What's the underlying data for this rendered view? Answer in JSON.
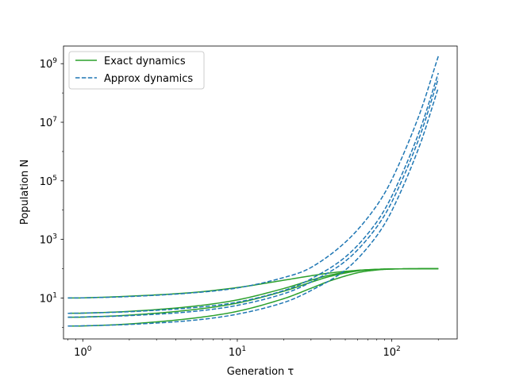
{
  "chart_data": {
    "type": "line",
    "xlabel": "Generation τ",
    "ylabel": "Population N",
    "xscale": "log",
    "yscale": "log",
    "xlim": [
      0.75,
      265
    ],
    "ylim": [
      0.4,
      4000000000.0
    ],
    "x_tick_labels": [
      {
        "value": 1,
        "base": "10",
        "exp": "0"
      },
      {
        "value": 10,
        "base": "10",
        "exp": "1"
      },
      {
        "value": 100,
        "base": "10",
        "exp": "2"
      }
    ],
    "y_tick_labels": [
      {
        "value": 10,
        "base": "10",
        "exp": "1"
      },
      {
        "value": 1000,
        "base": "10",
        "exp": "3"
      },
      {
        "value": 100000,
        "base": "10",
        "exp": "5"
      },
      {
        "value": 10000000,
        "base": "10",
        "exp": "7"
      },
      {
        "value": 1000000000,
        "base": "10",
        "exp": "9"
      }
    ],
    "grid": false,
    "legend_position": "top-left",
    "series": [
      {
        "name": "Exact dynamics",
        "style": "solid",
        "color": "#2ca02c",
        "groups": [
          {
            "x": [
              0.8,
              1,
              2,
              5,
              10,
              20,
              30,
              40,
              60,
              80,
              100,
              150,
              200
            ],
            "y": [
              10,
              10.1,
              11.5,
              15.2,
              22.7,
              40.4,
              57.3,
              71.6,
              88.1,
              95.0,
              98.0,
              99.7,
              100
            ]
          },
          {
            "x": [
              0.8,
              1,
              2,
              5,
              10,
              20,
              30,
              40,
              60,
              80,
              100,
              150,
              200
            ],
            "y": [
              3,
              3.04,
              3.5,
              5.1,
              8.6,
              21.1,
              40.5,
              61.0,
              86.0,
              95.0,
              98.0,
              99.7,
              100
            ]
          },
          {
            "x": [
              0.8,
              1,
              2,
              5,
              10,
              20,
              30,
              40,
              60,
              80,
              100,
              150,
              200
            ],
            "y": [
              2.2,
              2.23,
              2.6,
              3.9,
              6.7,
              17.1,
              34.5,
              55.0,
              83.8,
              94.5,
              98.0,
              99.7,
              100
            ]
          },
          {
            "x": [
              0.8,
              1,
              2,
              5,
              10,
              20,
              30,
              40,
              60,
              80,
              100,
              150,
              200
            ],
            "y": [
              1.1,
              1.11,
              1.3,
              2.0,
              3.5,
              9.5,
              21.5,
              38.8,
              72.6,
              90.2,
              96.9,
              99.6,
              100
            ]
          }
        ]
      },
      {
        "name": "Approx dynamics",
        "style": "dashed",
        "color": "#1f77b4",
        "groups": [
          {
            "x": [
              0.8,
              1,
              2,
              5,
              10,
              20,
              30,
              50,
              75,
              100,
              150,
              200
            ],
            "y": [
              10,
              10.1,
              11.2,
              14.8,
              22,
              50,
              110,
              800,
              9000,
              110000,
              17000000,
              1800000000
            ]
          },
          {
            "x": [
              0.8,
              1,
              2,
              5,
              10,
              20,
              30,
              50,
              75,
              100,
              150,
              200
            ],
            "y": [
              3,
              3.05,
              3.4,
              4.6,
              7.2,
              18,
              45,
              250,
              2500,
              30000,
              4500000,
              480000000
            ]
          },
          {
            "x": [
              0.8,
              1,
              2,
              5,
              10,
              20,
              30,
              50,
              75,
              100,
              150,
              200
            ],
            "y": [
              2.2,
              2.24,
              2.5,
              3.4,
              5.6,
              14,
              35,
              180,
              1700,
              19000,
              2800000,
              310000000
            ]
          },
          {
            "x": [
              0.8,
              1,
              2,
              5,
              10,
              20,
              30,
              50,
              75,
              100,
              150,
              200
            ],
            "y": [
              1.1,
              1.12,
              1.25,
              1.7,
              2.8,
              7,
              18,
              90,
              850,
              9500,
              1400000,
              150000000
            ]
          }
        ]
      }
    ]
  }
}
